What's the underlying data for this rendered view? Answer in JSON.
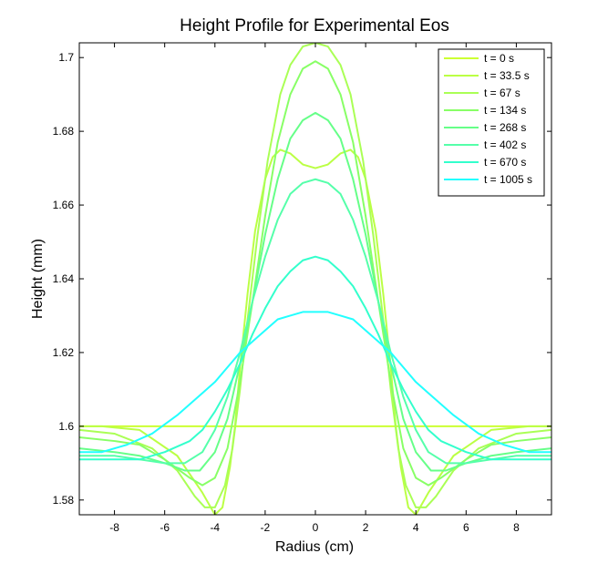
{
  "chart_data": {
    "type": "line",
    "title": "Height Profile for Experimental Eos",
    "xlabel": "Radius (cm)",
    "ylabel": "Height (mm)",
    "xlim": [
      -9.4,
      9.4
    ],
    "ylim": [
      1.576,
      1.704
    ],
    "xticks": [
      -8,
      -6,
      -4,
      -2,
      0,
      2,
      4,
      6,
      8
    ],
    "yticks": [
      1.58,
      1.6,
      1.62,
      1.64,
      1.66,
      1.68,
      1.7
    ],
    "xtick_labels": [
      "-8",
      "-6",
      "-4",
      "-2",
      "0",
      "2",
      "4",
      "6",
      "8"
    ],
    "ytick_labels": [
      "1.58",
      "1.6",
      "1.62",
      "1.64",
      "1.66",
      "1.68",
      "1.7"
    ],
    "grid": false,
    "legend_position": "top-right",
    "series": [
      {
        "name": "t = 0 s",
        "color": "#ccff33",
        "x": [
          -9.4,
          -8.8,
          -8.5,
          -6,
          -4.2,
          -4.0,
          -3.8,
          -3.6,
          -3.4,
          -3.25,
          -3.2,
          -3.0,
          -2.8,
          -2.5,
          -2.0,
          -1.3,
          -1.0,
          -0.5,
          0,
          0.5,
          1.0,
          1.3,
          2.0,
          2.5,
          2.8,
          3.0,
          3.2,
          3.25,
          3.4,
          3.6,
          3.8,
          4.0,
          4.2,
          6,
          8.5,
          8.8,
          9.4
        ],
        "y": [
          1.6,
          1.6,
          1.6,
          1.6,
          1.6,
          1.6,
          1.6,
          1.6,
          1.6,
          1.6,
          1.6,
          1.6,
          1.6,
          1.6,
          1.6,
          1.6,
          1.6,
          1.6,
          1.6,
          1.6,
          1.6,
          1.6,
          1.6,
          1.6,
          1.6,
          1.6,
          1.6,
          1.6,
          1.6,
          1.6,
          1.6,
          1.6,
          1.6,
          1.6,
          1.6,
          1.6,
          1.6
        ]
      },
      {
        "name": "t = 33.5 s",
        "color": "#bbff44",
        "x": [
          -9.4,
          -8.5,
          -7,
          -5.5,
          -4.5,
          -4.0,
          -3.7,
          -3.4,
          -3.2,
          -3.0,
          -2.7,
          -2.4,
          -2.0,
          -1.7,
          -1.4,
          -1.0,
          -0.5,
          0,
          0.5,
          1.0,
          1.4,
          1.7,
          2.0,
          2.4,
          2.7,
          3.0,
          3.2,
          3.4,
          3.7,
          4.0,
          4.5,
          5.5,
          7,
          8.5,
          9.4
        ],
        "y": [
          1.6,
          1.6,
          1.599,
          1.592,
          1.582,
          1.576,
          1.578,
          1.589,
          1.6,
          1.616,
          1.636,
          1.653,
          1.667,
          1.673,
          1.675,
          1.674,
          1.671,
          1.67,
          1.671,
          1.674,
          1.675,
          1.673,
          1.667,
          1.653,
          1.636,
          1.616,
          1.6,
          1.589,
          1.578,
          1.576,
          1.582,
          1.592,
          1.599,
          1.6,
          1.6
        ]
      },
      {
        "name": "t = 67 s",
        "color": "#aaff55",
        "x": [
          -9.4,
          -8,
          -6.5,
          -5.5,
          -4.8,
          -4.4,
          -4.0,
          -3.6,
          -3.3,
          -3.0,
          -2.7,
          -2.3,
          -1.9,
          -1.4,
          -1.0,
          -0.5,
          0,
          0.5,
          1.0,
          1.4,
          1.9,
          2.3,
          2.7,
          3.0,
          3.3,
          3.6,
          4.0,
          4.4,
          4.8,
          5.5,
          6.5,
          8,
          9.4
        ],
        "y": [
          1.599,
          1.598,
          1.594,
          1.588,
          1.581,
          1.578,
          1.578,
          1.584,
          1.594,
          1.61,
          1.629,
          1.652,
          1.672,
          1.69,
          1.698,
          1.703,
          1.704,
          1.703,
          1.698,
          1.69,
          1.672,
          1.652,
          1.629,
          1.61,
          1.594,
          1.584,
          1.578,
          1.578,
          1.581,
          1.588,
          1.594,
          1.598,
          1.599
        ]
      },
      {
        "name": "t = 134 s",
        "color": "#88ff66",
        "x": [
          -9.4,
          -8,
          -7,
          -6,
          -5,
          -4.5,
          -4.0,
          -3.5,
          -3.0,
          -2.5,
          -2.0,
          -1.5,
          -1.0,
          -0.5,
          0,
          0.5,
          1.0,
          1.5,
          2.0,
          2.5,
          3.0,
          3.5,
          4.0,
          4.5,
          5,
          6,
          7,
          8,
          9.4
        ],
        "y": [
          1.597,
          1.596,
          1.595,
          1.591,
          1.586,
          1.584,
          1.586,
          1.594,
          1.612,
          1.634,
          1.657,
          1.677,
          1.69,
          1.697,
          1.699,
          1.697,
          1.69,
          1.677,
          1.657,
          1.634,
          1.612,
          1.594,
          1.586,
          1.584,
          1.586,
          1.591,
          1.595,
          1.596,
          1.597
        ]
      },
      {
        "name": "t = 268 s",
        "color": "#66ff88",
        "x": [
          -9.4,
          -8,
          -7,
          -6,
          -5.2,
          -4.6,
          -4.0,
          -3.5,
          -3.0,
          -2.5,
          -2.0,
          -1.5,
          -1.0,
          -0.5,
          0,
          0.5,
          1.0,
          1.5,
          2.0,
          2.5,
          3.0,
          3.5,
          4.0,
          4.6,
          5.2,
          6,
          7,
          8,
          9.4
        ],
        "y": [
          1.594,
          1.593,
          1.592,
          1.59,
          1.588,
          1.588,
          1.593,
          1.602,
          1.617,
          1.634,
          1.652,
          1.667,
          1.678,
          1.683,
          1.685,
          1.683,
          1.678,
          1.667,
          1.652,
          1.634,
          1.617,
          1.602,
          1.593,
          1.588,
          1.588,
          1.59,
          1.592,
          1.593,
          1.594
        ]
      },
      {
        "name": "t = 402 s",
        "color": "#55ffaa",
        "x": [
          -9.4,
          -8,
          -7,
          -6,
          -5.2,
          -4.5,
          -4.0,
          -3.5,
          -3.0,
          -2.5,
          -2.0,
          -1.5,
          -1.0,
          -0.5,
          0,
          0.5,
          1.0,
          1.5,
          2.0,
          2.5,
          3.0,
          3.5,
          4.0,
          4.5,
          5.2,
          6,
          7,
          8,
          9.4
        ],
        "y": [
          1.592,
          1.592,
          1.591,
          1.59,
          1.59,
          1.593,
          1.599,
          1.608,
          1.62,
          1.634,
          1.646,
          1.656,
          1.663,
          1.666,
          1.667,
          1.666,
          1.663,
          1.656,
          1.646,
          1.634,
          1.62,
          1.608,
          1.599,
          1.593,
          1.59,
          1.59,
          1.591,
          1.592,
          1.592
        ]
      },
      {
        "name": "t = 670 s",
        "color": "#33ffcc",
        "x": [
          -9.4,
          -8,
          -7,
          -6,
          -5,
          -4.5,
          -4.0,
          -3.5,
          -3.0,
          -2.5,
          -2.0,
          -1.5,
          -1.0,
          -0.5,
          0,
          0.5,
          1.0,
          1.5,
          2.0,
          2.5,
          3.0,
          3.5,
          4.0,
          4.5,
          5,
          6,
          7,
          8,
          9.4
        ],
        "y": [
          1.591,
          1.591,
          1.591,
          1.593,
          1.596,
          1.599,
          1.604,
          1.61,
          1.617,
          1.625,
          1.632,
          1.638,
          1.642,
          1.645,
          1.646,
          1.645,
          1.642,
          1.638,
          1.632,
          1.625,
          1.617,
          1.61,
          1.604,
          1.599,
          1.596,
          1.593,
          1.591,
          1.591,
          1.591
        ]
      },
      {
        "name": "t = 1005 s",
        "color": "#22ffff",
        "x": [
          -9.4,
          -8.5,
          -7.5,
          -6.5,
          -5.5,
          -4.5,
          -4.0,
          -3.5,
          -3.0,
          -2.5,
          -2.0,
          -1.5,
          -1.0,
          -0.5,
          0,
          0.5,
          1.0,
          1.5,
          2.0,
          2.5,
          3.0,
          3.5,
          4.0,
          4.5,
          5.5,
          6.5,
          7.5,
          8.5,
          9.4
        ],
        "y": [
          1.593,
          1.593,
          1.595,
          1.598,
          1.603,
          1.609,
          1.612,
          1.616,
          1.62,
          1.623,
          1.626,
          1.629,
          1.63,
          1.631,
          1.631,
          1.631,
          1.63,
          1.629,
          1.626,
          1.623,
          1.62,
          1.616,
          1.612,
          1.609,
          1.603,
          1.598,
          1.595,
          1.593,
          1.593
        ]
      }
    ]
  }
}
